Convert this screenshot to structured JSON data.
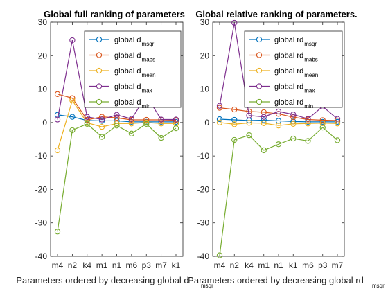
{
  "chart_data": [
    {
      "type": "line",
      "title": "Global full ranking of parameters",
      "xlabel": "Parameters ordered by decreasing global d",
      "xlabel_sub": "msqr",
      "ylabel": "",
      "ylim": [
        -40,
        30
      ],
      "yticks": [
        -40,
        -30,
        -20,
        -10,
        0,
        10,
        20,
        30
      ],
      "categories": [
        "m4",
        "n2",
        "k4",
        "m1",
        "n1",
        "m6",
        "p3",
        "m7",
        "k1"
      ],
      "grid": false,
      "legend_position": "top-right",
      "series": [
        {
          "name": "global d",
          "sub": "msqr",
          "color": "#0072BD",
          "values": [
            2.3,
            1.7,
            0.6,
            0.5,
            0.5,
            0.2,
            0.2,
            0.2,
            0.2
          ]
        },
        {
          "name": "global d",
          "sub": "mabs",
          "color": "#D95319",
          "values": [
            8.5,
            7.3,
            0.8,
            1.7,
            1.4,
            0.8,
            0.8,
            0.8,
            0.7
          ]
        },
        {
          "name": "global d",
          "sub": "mean",
          "color": "#EDB120",
          "values": [
            -8.3,
            6.6,
            -0.1,
            -1.3,
            -0.3,
            -0.3,
            0.0,
            -0.3,
            -0.3
          ]
        },
        {
          "name": "global d",
          "sub": "max",
          "color": "#7E2F8E",
          "values": [
            0.9,
            24.6,
            1.7,
            0.9,
            2.3,
            1.1,
            8.0,
            0.9,
            0.9
          ]
        },
        {
          "name": "global d",
          "sub": "min",
          "color": "#77AC30",
          "values": [
            -32.6,
            -2.3,
            -0.4,
            -4.3,
            -0.9,
            -3.3,
            -0.4,
            -4.6,
            -1.7
          ]
        }
      ]
    },
    {
      "type": "line",
      "title": "Global relative ranking of parameters.",
      "xlabel": "Parameters ordered by decreasing global rd",
      "xlabel_sub": "msqr",
      "ylabel": "",
      "ylim": [
        -40,
        30
      ],
      "yticks": [
        -40,
        -30,
        -20,
        -10,
        0,
        10,
        20,
        30
      ],
      "categories": [
        "m4",
        "n2",
        "k4",
        "m1",
        "n1",
        "k1",
        "m6",
        "p3",
        "m7"
      ],
      "grid": false,
      "legend_position": "top-right",
      "series": [
        {
          "name": "global rd",
          "sub": "msqr",
          "color": "#0072BD",
          "values": [
            1.0,
            0.8,
            0.6,
            0.7,
            0.5,
            0.3,
            0.2,
            0.2,
            0.2
          ]
        },
        {
          "name": "global rd",
          "sub": "mabs",
          "color": "#D95319",
          "values": [
            4.4,
            3.9,
            3.3,
            3.1,
            2.6,
            1.6,
            0.9,
            0.7,
            0.6
          ]
        },
        {
          "name": "global rd",
          "sub": "mean",
          "color": "#EDB120",
          "values": [
            0.0,
            -0.5,
            -0.1,
            -0.2,
            -0.9,
            -0.4,
            -0.3,
            -0.2,
            -0.3
          ]
        },
        {
          "name": "global rd",
          "sub": "max",
          "color": "#7E2F8E",
          "values": [
            5.0,
            29.8,
            2.1,
            1.7,
            3.3,
            2.4,
            1.1,
            4.8,
            1.1
          ]
        },
        {
          "name": "global rd",
          "sub": "min",
          "color": "#77AC30",
          "values": [
            -39.7,
            -5.2,
            -3.8,
            -8.3,
            -6.5,
            -4.8,
            -5.5,
            -1.5,
            -5.3
          ]
        }
      ]
    }
  ]
}
